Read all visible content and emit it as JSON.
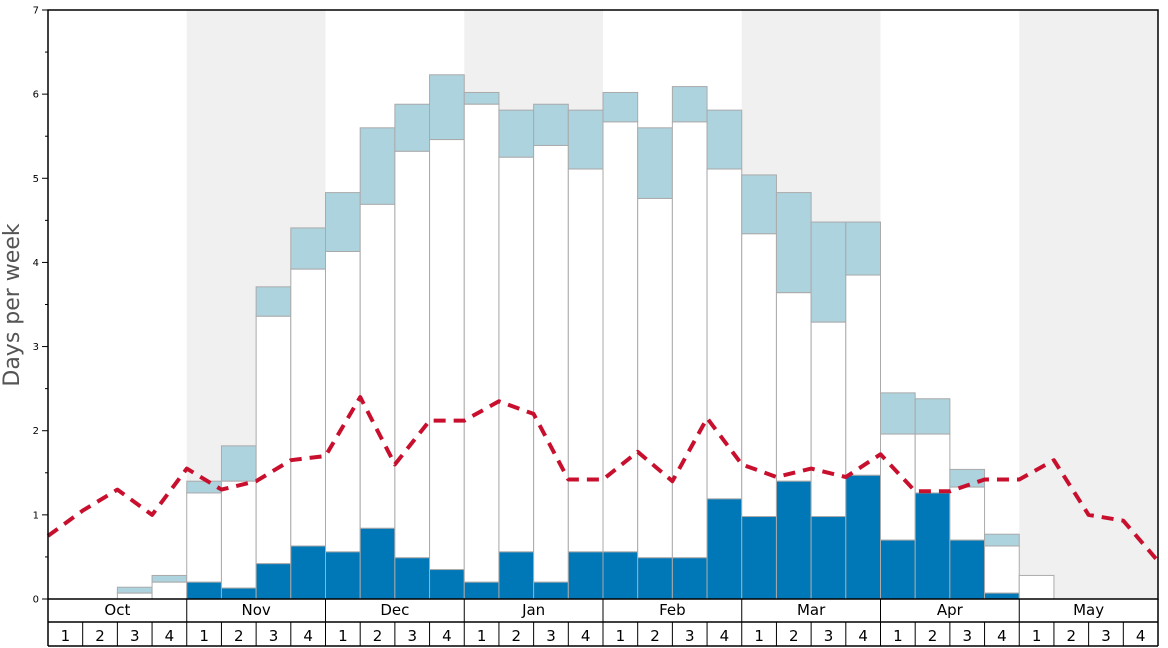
{
  "chart_data": {
    "type": "bar",
    "ylabel": "Days per week",
    "ylim": [
      0,
      7
    ],
    "yticks": [
      "0",
      "1",
      "2",
      "3",
      "4",
      "5",
      "6",
      "7"
    ],
    "months": [
      "Oct",
      "Nov",
      "Dec",
      "Jan",
      "Feb",
      "Mar",
      "Apr",
      "May"
    ],
    "week_labels": [
      "1",
      "2",
      "3",
      "4"
    ],
    "colors": {
      "shade": "#f0f0f0",
      "upper": "#add3df",
      "middle": "#ffffff",
      "lower": "#0077b6",
      "line": "#c8102e",
      "bar_stroke": "#aaaaaa"
    },
    "series": [
      {
        "values": [
          0,
          0,
          0.0,
          0.0,
          0.2,
          0.13,
          0.42,
          0.63,
          0.56,
          0.84,
          0.49,
          0.35,
          0.2,
          0.56,
          0.2,
          0.56,
          0.56,
          0.49,
          0.49,
          1.19,
          0.98,
          1.4,
          0.98,
          1.47,
          0.7,
          1.26,
          0.7,
          0.07,
          0,
          0,
          0,
          0
        ]
      },
      {
        "values": [
          0,
          0,
          0.07,
          0.2,
          1.26,
          1.4,
          3.36,
          3.92,
          4.13,
          4.69,
          5.32,
          5.46,
          5.88,
          5.25,
          5.39,
          5.11,
          5.67,
          4.76,
          5.67,
          5.11,
          4.34,
          3.64,
          3.29,
          3.85,
          1.96,
          1.96,
          1.33,
          0.63,
          0.28,
          0,
          0,
          0
        ]
      },
      {
        "values": [
          0,
          0,
          0.14,
          0.28,
          1.4,
          1.82,
          3.71,
          4.41,
          4.83,
          5.6,
          5.88,
          6.23,
          6.02,
          5.81,
          5.88,
          5.81,
          6.02,
          5.6,
          6.09,
          5.81,
          5.04,
          4.83,
          4.48,
          4.48,
          2.45,
          2.38,
          1.54,
          0.77,
          0.28,
          0,
          0,
          0
        ]
      },
      {
        "values": [
          0.75,
          1.05,
          1.3,
          1.0,
          1.55,
          1.3,
          1.4,
          1.65,
          1.7,
          2.4,
          1.6,
          2.12,
          2.12,
          2.35,
          2.2,
          1.42,
          1.42,
          1.75,
          1.4,
          2.15,
          1.6,
          1.45,
          1.55,
          1.45,
          1.72,
          1.28,
          1.28,
          1.42,
          1.42,
          1.65,
          1.0,
          0.93,
          0.45
        ]
      }
    ]
  }
}
